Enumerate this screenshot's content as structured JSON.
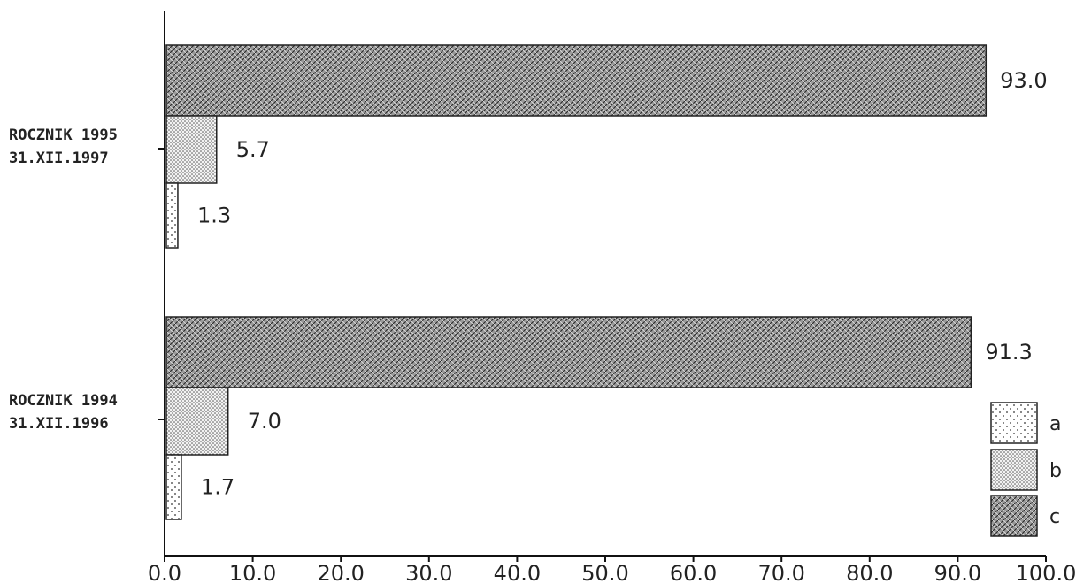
{
  "chart_data": {
    "type": "bar",
    "orientation": "horizontal",
    "categories": [
      [
        "ROCZNIK 1995",
        "31.XII.1997"
      ],
      [
        "ROCZNIK 1994",
        "31.XII.1996"
      ]
    ],
    "series": [
      {
        "name": "a",
        "values": [
          1.3,
          1.7
        ],
        "value_labels": [
          "1.3",
          "1.7"
        ],
        "pattern": "sparse-dots"
      },
      {
        "name": "b",
        "values": [
          5.7,
          7.0
        ],
        "value_labels": [
          "5.7",
          "7.0"
        ],
        "pattern": "dense-dots"
      },
      {
        "name": "c",
        "values": [
          93.0,
          91.3
        ],
        "value_labels": [
          "93.0",
          "91.3"
        ],
        "pattern": "crosshatch"
      }
    ],
    "xlim": [
      0,
      100
    ],
    "x_ticks": [
      "0.0",
      "10.0",
      "20.0",
      "30.0",
      "40.0",
      "50.0",
      "60.0",
      "70.0",
      "80.0",
      "90.0",
      "100.0"
    ],
    "grid": false,
    "legend_position": "bottom-right",
    "title": "",
    "xlabel": "",
    "ylabel": ""
  }
}
